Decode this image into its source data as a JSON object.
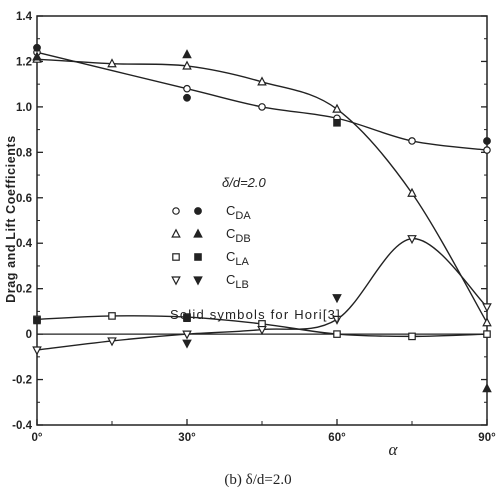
{
  "chart_data": {
    "type": "line",
    "caption": "(b)  δ/d=2.0",
    "condition_label": "δ/d=2.0",
    "xlabel": "α",
    "ylabel": "Drag and Lift Coefficients",
    "x_ticks": [
      0,
      30,
      60,
      90
    ],
    "x_tick_labels": [
      "0°",
      "30°",
      "60°",
      "90°"
    ],
    "y_ticks": [
      -0.4,
      -0.2,
      0,
      0.2,
      0.4,
      0.6,
      0.8,
      1.0,
      1.2,
      1.4
    ],
    "y_tick_labels": [
      "-0.4",
      "-0.2",
      "0",
      "0.2",
      "0.4",
      "0.6",
      "0.8",
      "1.0",
      "1.2",
      "1.4"
    ],
    "xlim": [
      0,
      90
    ],
    "ylim": [
      -0.4,
      1.4
    ],
    "grid": false,
    "legend_note": "Solid symbols for Hori[3]",
    "series": [
      {
        "name": "C_DA",
        "name_main": "C",
        "name_sub": "DA",
        "open_marker": "circle",
        "solid_marker": "dot",
        "x": [
          0,
          30,
          45,
          60,
          75,
          90
        ],
        "y": [
          1.24,
          1.08,
          1.0,
          0.95,
          0.85,
          0.81
        ],
        "solid_x": [
          0,
          30,
          90
        ],
        "solid_y": [
          1.26,
          1.04,
          0.85
        ]
      },
      {
        "name": "C_DB",
        "name_main": "C",
        "name_sub": "DB",
        "open_marker": "triangle-up",
        "solid_marker": "triangle-up",
        "x": [
          0,
          15,
          30,
          45,
          60,
          75,
          90
        ],
        "y": [
          1.21,
          1.19,
          1.18,
          1.11,
          0.99,
          0.62,
          0.05
        ],
        "solid_x": [
          0,
          30,
          90
        ],
        "solid_y": [
          1.22,
          1.23,
          -0.24
        ]
      },
      {
        "name": "C_LA",
        "name_main": "C",
        "name_sub": "LA",
        "open_marker": "square",
        "solid_marker": "square",
        "x": [
          0,
          15,
          30,
          45,
          60,
          75,
          90
        ],
        "y": [
          0.065,
          0.08,
          0.075,
          0.045,
          0.0,
          -0.01,
          0.0
        ],
        "solid_x": [
          0,
          30,
          60
        ],
        "solid_y": [
          0.06,
          0.07,
          0.93
        ]
      },
      {
        "name": "C_LB",
        "name_main": "C",
        "name_sub": "LB",
        "open_marker": "triangle-down",
        "solid_marker": "triangle-down",
        "x": [
          0,
          15,
          30,
          45,
          60,
          75,
          90
        ],
        "y": [
          -0.07,
          -0.03,
          0.0,
          0.02,
          0.065,
          0.42,
          0.12
        ],
        "solid_x": [
          30,
          60
        ],
        "solid_y": [
          -0.04,
          0.16
        ]
      }
    ]
  }
}
